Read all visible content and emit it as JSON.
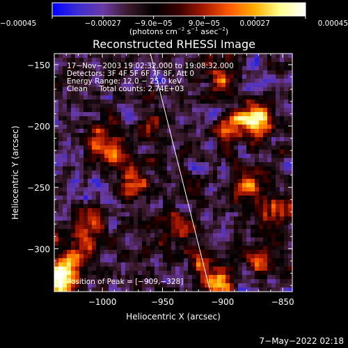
{
  "chart_data": {
    "type": "heatmap",
    "title": "Reconstructed RHESSI Image",
    "xlabel": "Heliocentric X (arcsec)",
    "ylabel": "Heliocentric Y (arcsec)",
    "xlim": [
      -1040,
      -842
    ],
    "ylim": [
      -335,
      -141
    ],
    "x_ticks": [
      -1000,
      -950,
      -900,
      -850
    ],
    "x_tick_labels": [
      "−1000",
      "−950",
      "−900",
      "−850"
    ],
    "y_ticks": [
      -300,
      -250,
      -200,
      -150
    ],
    "y_tick_labels": [
      "−300",
      "−250",
      "−200",
      "−150"
    ],
    "colorbar": {
      "range": [
        -0.00045,
        0.00045
      ],
      "ticks": [
        -0.00045,
        -0.00027,
        -9e-05,
        9e-05,
        0.00027,
        0.00045
      ],
      "tick_labels": [
        "−0.00045",
        "−0.00027",
        "−9.0e−05",
        "9.0e−05",
        "0.00027",
        "0.00045"
      ],
      "units_main": "(photons cm",
      "units_sup1": "−2",
      "units_mid": " s",
      "units_sup2": "−1",
      "units_mid2": " asec",
      "units_sup3": "−2",
      "units_end": ")",
      "colormap": [
        "#0000ff",
        "#3c2dd2",
        "#6a3aa6",
        "#3a1a2a",
        "#000000",
        "#3a0000",
        "#aa1a00",
        "#ff5a00",
        "#ffb000",
        "#ffff90",
        "#ffffff"
      ]
    },
    "annotations": [
      "17−Nov−2003 19:02:32.000 to 19:08:32.000",
      "Detectors: 3F 4F 5F 6F 7F 8F, Att 0",
      "Energy Range: 12.0 − 25.0 keV",
      "Clean     Total counts: 2.74E+03"
    ],
    "peak_label": "Position of Peak = [−909,−328]",
    "peak": {
      "x": -909,
      "y": -328
    },
    "limb_line": [
      [
        -960,
        -141
      ],
      [
        -911,
        -332
      ]
    ],
    "hot_spots": [
      {
        "x": -1036,
        "y": -318,
        "v": 0.00042
      },
      {
        "x": -1034,
        "y": -330,
        "v": 0.00045
      },
      {
        "x": -1000,
        "y": -212,
        "v": 0.00036
      },
      {
        "x": -985,
        "y": -226,
        "v": 0.0003
      },
      {
        "x": -974,
        "y": -248,
        "v": 0.00032
      },
      {
        "x": -1012,
        "y": -280,
        "v": 0.00028
      },
      {
        "x": -1020,
        "y": -305,
        "v": 0.00024
      },
      {
        "x": -905,
        "y": -330,
        "v": 0.00045
      },
      {
        "x": -918,
        "y": -312,
        "v": 0.0003
      },
      {
        "x": -895,
        "y": -205,
        "v": 0.0003
      },
      {
        "x": -882,
        "y": -190,
        "v": 0.00028
      },
      {
        "x": -870,
        "y": -198,
        "v": 0.0004
      },
      {
        "x": -878,
        "y": -248,
        "v": 0.00036
      },
      {
        "x": -860,
        "y": -270,
        "v": 0.0003
      },
      {
        "x": -865,
        "y": -310,
        "v": 0.00032
      },
      {
        "x": -900,
        "y": -158,
        "v": 0.00026
      },
      {
        "x": -960,
        "y": -200,
        "v": 0.00022
      },
      {
        "x": -938,
        "y": -280,
        "v": 0.00024
      }
    ]
  },
  "footer": {
    "timestamp": "7−May−2022 02:18"
  }
}
